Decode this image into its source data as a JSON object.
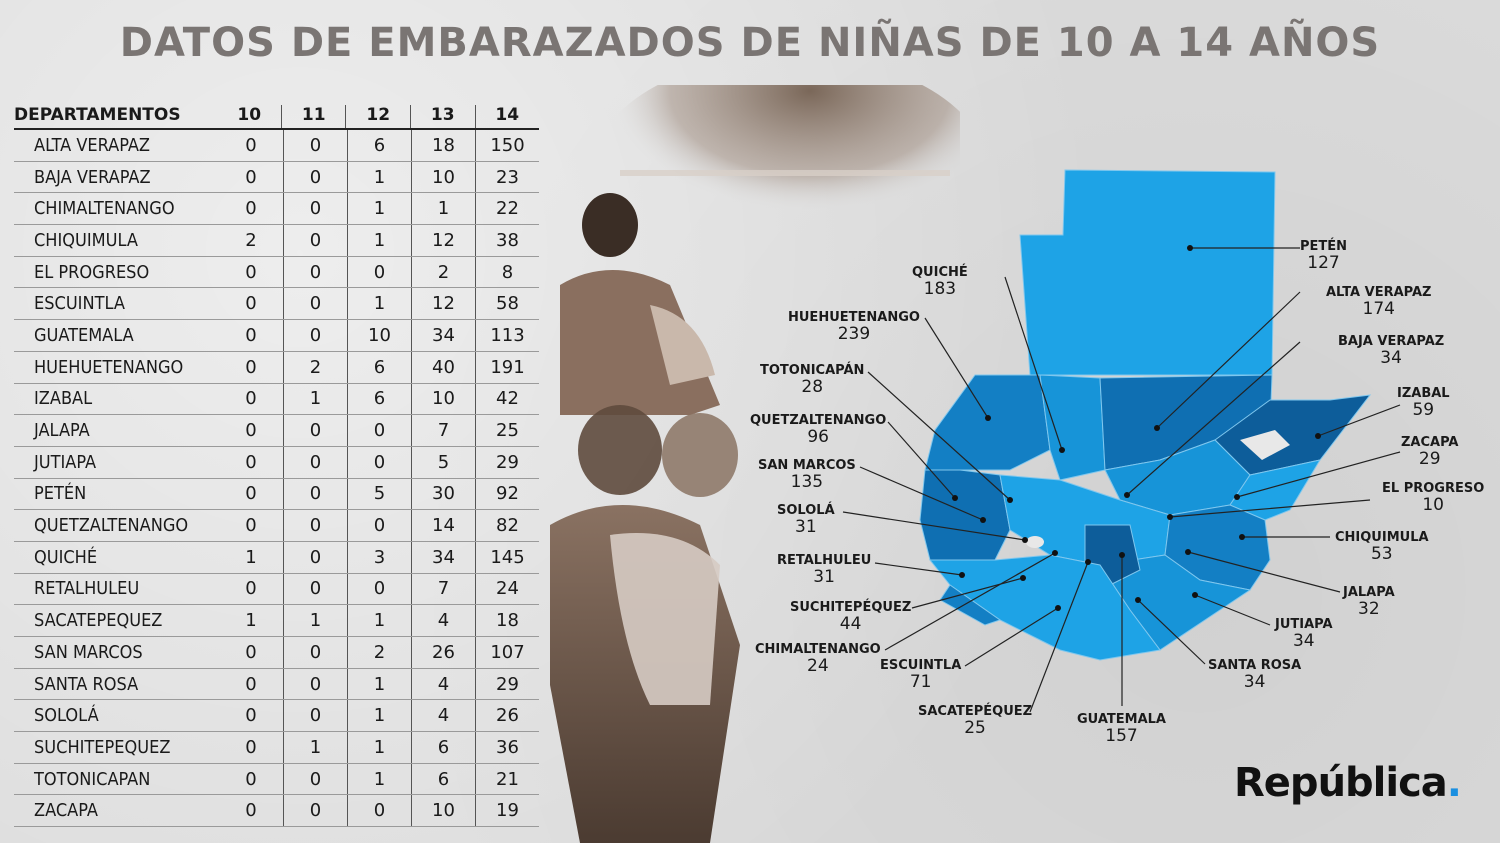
{
  "title": "DATOS DE EMBARAZADOS DE NIÑAS DE 10 A 14 AÑOS",
  "table": {
    "headers": [
      "DEPARTAMENTOS",
      "10",
      "11",
      "12",
      "13",
      "14"
    ],
    "rows": [
      [
        "ALTA VERAPAZ",
        "0",
        "0",
        "6",
        "18",
        "150"
      ],
      [
        "BAJA VERAPAZ",
        "0",
        "0",
        "1",
        "10",
        "23"
      ],
      [
        "CHIMALTENANGO",
        "0",
        "0",
        "1",
        "1",
        "22"
      ],
      [
        "CHIQUIMULA",
        "2",
        "0",
        "1",
        "12",
        "38"
      ],
      [
        "EL PROGRESO",
        "0",
        "0",
        "0",
        "2",
        "8"
      ],
      [
        "ESCUINTLA",
        "0",
        "0",
        "1",
        "12",
        "58"
      ],
      [
        "GUATEMALA",
        "0",
        "0",
        "10",
        "34",
        "113"
      ],
      [
        "HUEHUETENANGO",
        "0",
        "2",
        "6",
        "40",
        "191"
      ],
      [
        "IZABAL",
        "0",
        "1",
        "6",
        "10",
        "42"
      ],
      [
        "JALAPA",
        "0",
        "0",
        "0",
        "7",
        "25"
      ],
      [
        "JUTIAPA",
        "0",
        "0",
        "0",
        "5",
        "29"
      ],
      [
        "PETÉN",
        "0",
        "0",
        "5",
        "30",
        "92"
      ],
      [
        "QUETZALTENANGO",
        "0",
        "0",
        "0",
        "14",
        "82"
      ],
      [
        "QUICHÉ",
        "1",
        "0",
        "3",
        "34",
        "145"
      ],
      [
        "RETALHULEU",
        "0",
        "0",
        "0",
        "7",
        "24"
      ],
      [
        "SACATEPEQUEZ",
        "1",
        "1",
        "1",
        "4",
        "18"
      ],
      [
        "SAN MARCOS",
        "0",
        "0",
        "2",
        "26",
        "107"
      ],
      [
        "SANTA ROSA",
        "0",
        "0",
        "1",
        "4",
        "29"
      ],
      [
        "SOLOLÁ",
        "0",
        "0",
        "1",
        "4",
        "26"
      ],
      [
        "SUCHITEPEQUEZ",
        "0",
        "1",
        "1",
        "6",
        "36"
      ],
      [
        "TOTONICAPAN",
        "0",
        "0",
        "1",
        "6",
        "21"
      ],
      [
        "ZACAPA",
        "0",
        "0",
        "0",
        "10",
        "19"
      ]
    ]
  },
  "map_labels": [
    {
      "name": "PETÉN",
      "value": "127"
    },
    {
      "name": "QUICHÉ",
      "value": "183"
    },
    {
      "name": "ALTA VERAPAZ",
      "value": "174"
    },
    {
      "name": "HUEHUETENANGO",
      "value": "239"
    },
    {
      "name": "BAJA VERAPAZ",
      "value": "34"
    },
    {
      "name": "TOTONICAPÁN",
      "value": "28"
    },
    {
      "name": "IZABAL",
      "value": "59"
    },
    {
      "name": "QUETZALTENANGO",
      "value": "96"
    },
    {
      "name": "ZACAPA",
      "value": "29"
    },
    {
      "name": "SAN MARCOS",
      "value": "135"
    },
    {
      "name": "EL PROGRESO",
      "value": "10"
    },
    {
      "name": "SOLOLÁ",
      "value": "31"
    },
    {
      "name": "CHIQUIMULA",
      "value": "53"
    },
    {
      "name": "RETALHULEU",
      "value": "31"
    },
    {
      "name": "JALAPA",
      "value": "32"
    },
    {
      "name": "SUCHITEPÉQUEZ",
      "value": "44"
    },
    {
      "name": "JUTIAPA",
      "value": "34"
    },
    {
      "name": "CHIMALTENANGO",
      "value": "24"
    },
    {
      "name": "ESCUINTLA",
      "value": "71"
    },
    {
      "name": "SANTA ROSA",
      "value": "34"
    },
    {
      "name": "SACATEPÉQUEZ",
      "value": "25"
    },
    {
      "name": "GUATEMALA",
      "value": "157"
    }
  ],
  "brand": {
    "text": "República",
    "dot": "."
  },
  "colors": {
    "light_blue": "#1ea3e6",
    "mid_blue": "#137fc4",
    "dark_blue": "#0d5d9a",
    "title_gray": "#7a7573"
  }
}
